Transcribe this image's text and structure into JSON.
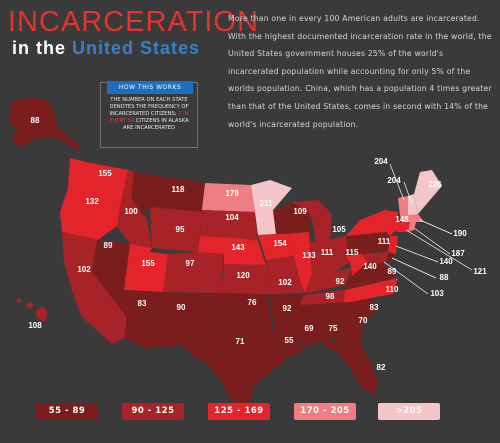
{
  "title": {
    "line1": "INCARCERATION",
    "line2_a": "in the",
    "line2_b": "United States"
  },
  "intro": "More than one in every 100 American adults are incarcerated. With the highest documented incarceration rate in the world, the United States government houses 25% of the world's incarcerated population while accounting for only 5% of the worlds population. China, which has a population 4 times greater than that of the United States, comes in second with 14% of the world's incarcerated population.",
  "how_it_works": {
    "heading": "HOW THIS WORKS",
    "text_a": "THE NUMBER ON EACH STATE DENOTES THE FREQUENCY OF INCARCERATED CITIZENS;",
    "text_red": "1 IN EVERY 88",
    "text_b": "CITIZENS IN ALASKA ARE INCARCERATED"
  },
  "colors": {
    "bg": "#3a3a3a",
    "c1": "#7a1d1d",
    "c2": "#a82327",
    "c3": "#e3242b",
    "c4": "#ef7d84",
    "c5": "#f5c6c9"
  },
  "legend": [
    {
      "label": "55 - 89",
      "color": "#7a1d1d"
    },
    {
      "label": "90 - 125",
      "color": "#a82327"
    },
    {
      "label": "125 - 169",
      "color": "#e3242b"
    },
    {
      "label": "170 - 205",
      "color": "#ef7d84"
    },
    {
      "label": ">205",
      "color": "#f5c6c9"
    }
  ],
  "states": [
    {
      "id": "AK",
      "value": "88"
    },
    {
      "id": "HI",
      "value": "108"
    },
    {
      "id": "WA",
      "value": "155"
    },
    {
      "id": "OR",
      "value": "132"
    },
    {
      "id": "CA",
      "value": "102"
    },
    {
      "id": "NV",
      "value": "89"
    },
    {
      "id": "ID",
      "value": "100"
    },
    {
      "id": "MT",
      "value": "118"
    },
    {
      "id": "WY",
      "value": "95"
    },
    {
      "id": "UT",
      "value": "155"
    },
    {
      "id": "AZ",
      "value": "83"
    },
    {
      "id": "CO",
      "value": "97"
    },
    {
      "id": "NM",
      "value": "90"
    },
    {
      "id": "ND",
      "value": "179"
    },
    {
      "id": "SD",
      "value": "104"
    },
    {
      "id": "NE",
      "value": "143"
    },
    {
      "id": "KS",
      "value": "120"
    },
    {
      "id": "OK",
      "value": "76"
    },
    {
      "id": "TX",
      "value": "71"
    },
    {
      "id": "MN",
      "value": "211"
    },
    {
      "id": "IA",
      "value": "154"
    },
    {
      "id": "MO",
      "value": "102"
    },
    {
      "id": "AR",
      "value": "92"
    },
    {
      "id": "LA",
      "value": "55"
    },
    {
      "id": "WI",
      "value": "109"
    },
    {
      "id": "IL",
      "value": "133"
    },
    {
      "id": "MS",
      "value": "69"
    },
    {
      "id": "MI",
      "value": "105"
    },
    {
      "id": "IN",
      "value": "111"
    },
    {
      "id": "KY",
      "value": "98"
    },
    {
      "id": "TN",
      "value": "92"
    },
    {
      "id": "AL",
      "value": "75"
    },
    {
      "id": "OH",
      "value": "115"
    },
    {
      "id": "WV",
      "value": "140"
    },
    {
      "id": "GA",
      "value": "70"
    },
    {
      "id": "FL",
      "value": "82"
    },
    {
      "id": "SC",
      "value": "83"
    },
    {
      "id": "NC",
      "value": "110"
    },
    {
      "id": "VA",
      "value": "89"
    },
    {
      "id": "PA",
      "value": "111"
    },
    {
      "id": "NY",
      "value": "148"
    },
    {
      "id": "VT",
      "value": "204"
    },
    {
      "id": "NH",
      "value": "204"
    },
    {
      "id": "ME",
      "value": "226"
    },
    {
      "id": "MA",
      "value": "190"
    },
    {
      "id": "RI",
      "value": "187"
    },
    {
      "id": "CT",
      "value": "121"
    },
    {
      "id": "NJ",
      "value": "140"
    },
    {
      "id": "DE",
      "value": "88"
    },
    {
      "id": "MD",
      "value": "103"
    }
  ]
}
